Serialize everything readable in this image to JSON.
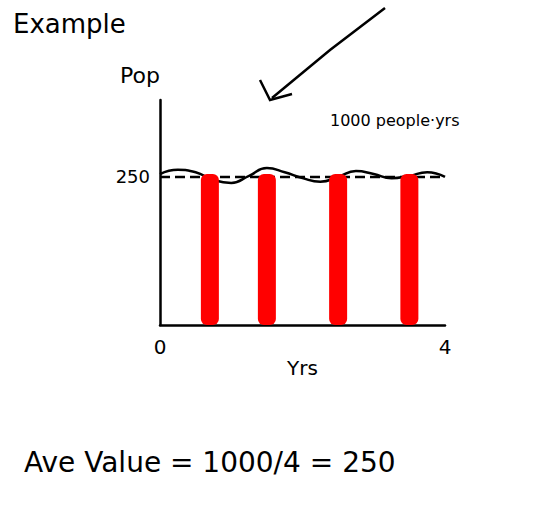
{
  "header": "Example",
  "chart_data": {
    "type": "line",
    "x_label": "Yrs",
    "y_label": "Pop",
    "xlim": [
      0,
      4
    ],
    "xticks": [
      0,
      4
    ],
    "ylim": [
      0,
      380
    ],
    "yticks": [
      250
    ],
    "grid": false,
    "annotation": "1000 people·yrs",
    "formula": "Ave Value = 1000/4 = 250",
    "series": [
      {
        "type": "line",
        "color": "#000000",
        "line_style": "solid",
        "x": [
          0,
          0.25,
          0.5,
          0.75,
          1,
          1.25,
          1.5,
          1.75,
          2,
          2.25,
          2.5,
          2.75,
          3,
          3.25,
          3.5,
          3.75,
          4
        ],
        "values": [
          255,
          262,
          258,
          245,
          240,
          252,
          265,
          258,
          248,
          242,
          250,
          260,
          255,
          248,
          252,
          258,
          250
        ]
      },
      {
        "type": "line",
        "color": "#000000",
        "line_style": "dashed",
        "x": [
          0,
          4
        ],
        "values": [
          250,
          250
        ]
      },
      {
        "type": "bar",
        "color": "#ff0000",
        "x": [
          0.7,
          1.5,
          2.5,
          3.5
        ],
        "values": [
          255,
          255,
          255,
          255
        ]
      }
    ]
  }
}
